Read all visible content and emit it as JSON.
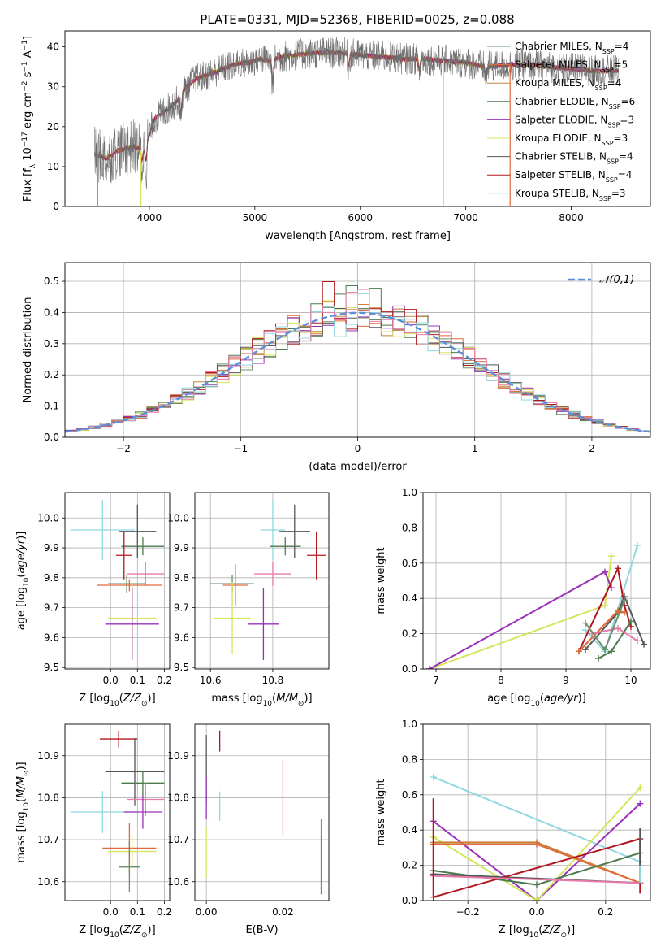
{
  "title": "PLATE=0331, MJD=52368, FIBERID=0025, z=0.088",
  "colors": {
    "c0": "#6a8f6a",
    "c1": "#e06a3a",
    "c2": "#c8843c",
    "c3": "#4d7a4d",
    "c4": "#9b30b8",
    "c5": "#d4e65a",
    "c6": "#555555",
    "c7": "#b01820",
    "c8": "#8fd8e0",
    "pink": "#e67aa8",
    "blue": "#5b8fd9"
  },
  "legend_spectrum": [
    {
      "label": "Chabrier MILES, N_SSP=4",
      "color": "c0"
    },
    {
      "label": "Salpeter MILES, N_SSP=5",
      "color": "c1"
    },
    {
      "label": "Kroupa MILES, N_SSP=4",
      "color": "c2"
    },
    {
      "label": "Chabrier ELODIE, N_SSP=6",
      "color": "c3"
    },
    {
      "label": "Salpeter ELODIE, N_SSP=3",
      "color": "c4"
    },
    {
      "label": "Kroupa ELODIE, N_SSP=3",
      "color": "c5"
    },
    {
      "label": "Chabrier STELIB, N_SSP=4",
      "color": "c6"
    },
    {
      "label": "Salpeter STELIB, N_SSP=4",
      "color": "c7"
    },
    {
      "label": "Kroupa STELIB, N_SSP=3",
      "color": "c8"
    }
  ],
  "chart_data": [
    {
      "id": "spectrum",
      "type": "line",
      "xlabel": "wavelength [Angstrom, rest frame]",
      "ylabel": "Flux [f_λ 10^-17 erg cm^-2 s^-1 A^-1]",
      "xlim": [
        3200,
        8750
      ],
      "ylim": [
        0,
        44
      ],
      "xticks": [
        4000,
        5000,
        6000,
        7000,
        8000
      ],
      "yticks": [
        0,
        10,
        20,
        30,
        40
      ],
      "grid": false,
      "legend_position": "right",
      "profile": [
        [
          3480,
          13
        ],
        [
          3600,
          12
        ],
        [
          3700,
          14
        ],
        [
          3850,
          15
        ],
        [
          3950,
          14
        ],
        [
          4050,
          22
        ],
        [
          4150,
          24
        ],
        [
          4250,
          26
        ],
        [
          4350,
          30
        ],
        [
          4450,
          32
        ],
        [
          4550,
          33
        ],
        [
          4650,
          34
        ],
        [
          4750,
          35
        ],
        [
          4850,
          36
        ],
        [
          4950,
          36
        ],
        [
          5050,
          37
        ],
        [
          5150,
          36.5
        ],
        [
          5250,
          37.5
        ],
        [
          5400,
          38
        ],
        [
          5600,
          38.5
        ],
        [
          5800,
          38.5
        ],
        [
          6000,
          38
        ],
        [
          6200,
          37.5
        ],
        [
          6400,
          37
        ],
        [
          6600,
          37
        ],
        [
          6800,
          36.5
        ],
        [
          7000,
          36
        ],
        [
          7200,
          35
        ],
        [
          7400,
          35.5
        ],
        [
          7600,
          35.5
        ],
        [
          7800,
          35
        ],
        [
          8000,
          34.5
        ],
        [
          8200,
          34
        ],
        [
          8450,
          34
        ]
      ],
      "dips": [
        [
          3930,
          3
        ],
        [
          3970,
          4
        ],
        [
          4300,
          5
        ],
        [
          5170,
          6
        ],
        [
          5890,
          3
        ],
        [
          6560,
          3
        ],
        [
          7190,
          3
        ]
      ],
      "spikes": [
        {
          "x": 3510,
          "y": 0,
          "color": "c1"
        },
        {
          "x": 3920,
          "y": 0,
          "color": "c5"
        },
        {
          "x": 6790,
          "y": 0,
          "color": "c5"
        },
        {
          "x": 7420,
          "y": 0,
          "color": "c1"
        }
      ]
    },
    {
      "id": "residual_hist",
      "type": "step-histogram",
      "xlabel": "(data-model)/error",
      "ylabel": "Normed distribution",
      "xlim": [
        -2.5,
        2.5
      ],
      "ylim": [
        0,
        0.56
      ],
      "xticks": [
        -2,
        -1,
        0,
        1,
        2
      ],
      "yticks": [
        0.0,
        0.1,
        0.2,
        0.3,
        0.4,
        0.5
      ],
      "grid": true,
      "bin_width": 0.1,
      "legend": "𝒩(0,1)",
      "legend_position": "top-right",
      "reference_curve": "normal(0,1)"
    },
    {
      "id": "age_vs_Z",
      "type": "errorbar",
      "xlabel": "Z [log10(Z/Z☉)]",
      "ylabel": "age  [log10(age/yr)]",
      "xlim": [
        -0.17,
        0.22
      ],
      "ylim": [
        9.495,
        10.085
      ],
      "xticks": [
        0.0,
        0.1,
        0.2
      ],
      "yticks": [
        9.5,
        9.6,
        9.7,
        9.8,
        9.9,
        10.0
      ],
      "grid": true,
      "points": [
        {
          "x": -0.03,
          "xerr": 0.12,
          "y": 9.96,
          "yerr": 0.1,
          "color": "c8"
        },
        {
          "x": 0.1,
          "xerr": 0.07,
          "y": 9.955,
          "yerr": 0.09,
          "color": "c6"
        },
        {
          "x": 0.12,
          "xerr": 0.08,
          "y": 9.905,
          "yerr": 0.03,
          "color": "c3"
        },
        {
          "x": 0.05,
          "xerr": 0.03,
          "y": 9.875,
          "yerr": 0.08,
          "color": "c7"
        },
        {
          "x": 0.13,
          "xerr": 0.07,
          "y": 9.813,
          "yerr": 0.04,
          "color": "pink"
        },
        {
          "x": 0.06,
          "xerr": 0.07,
          "y": 9.78,
          "yerr": 0.03,
          "color": "c0"
        },
        {
          "x": 0.07,
          "xerr": 0.12,
          "y": 9.775,
          "yerr": 0.02,
          "color": "c1"
        },
        {
          "x": 0.08,
          "xerr": 0.09,
          "y": 9.665,
          "yerr": 0.12,
          "color": "c5"
        },
        {
          "x": 0.08,
          "xerr": 0.1,
          "y": 9.645,
          "yerr": 0.12,
          "color": "c4"
        }
      ]
    },
    {
      "id": "age_vs_mass",
      "type": "errorbar",
      "xlabel": "mass [log10(M/M☉)]",
      "ylabel": "",
      "xlim": [
        10.55,
        10.98
      ],
      "ylim": [
        9.495,
        10.085
      ],
      "xticks": [
        10.6,
        10.8
      ],
      "yticks": [
        9.5,
        9.6,
        9.7,
        9.8,
        9.9,
        10.0
      ],
      "grid": true,
      "points": [
        {
          "x": 10.8,
          "xerr": 0.04,
          "y": 9.96,
          "yerr": 0.1,
          "color": "c8"
        },
        {
          "x": 10.87,
          "xerr": 0.05,
          "y": 9.955,
          "yerr": 0.09,
          "color": "c6"
        },
        {
          "x": 10.84,
          "xerr": 0.05,
          "y": 9.905,
          "yerr": 0.03,
          "color": "c3"
        },
        {
          "x": 10.94,
          "xerr": 0.03,
          "y": 9.875,
          "yerr": 0.08,
          "color": "c7"
        },
        {
          "x": 10.8,
          "xerr": 0.06,
          "y": 9.813,
          "yerr": 0.04,
          "color": "pink"
        },
        {
          "x": 10.67,
          "xerr": 0.07,
          "y": 9.78,
          "yerr": 0.03,
          "color": "c0"
        },
        {
          "x": 10.68,
          "xerr": 0.04,
          "y": 9.775,
          "yerr": 0.07,
          "color": "c1"
        },
        {
          "x": 10.67,
          "xerr": 0.06,
          "y": 9.665,
          "yerr": 0.12,
          "color": "c5"
        },
        {
          "x": 10.77,
          "xerr": 0.05,
          "y": 9.645,
          "yerr": 0.12,
          "color": "c4"
        }
      ]
    },
    {
      "id": "mass_weight_vs_age",
      "type": "line",
      "xlabel": "age  [log10(age/yr)]",
      "ylabel": "mass weight",
      "xlim": [
        6.8,
        10.3
      ],
      "ylim": [
        0,
        1
      ],
      "xticks": [
        7,
        8,
        9,
        10
      ],
      "yticks": [
        0.0,
        0.2,
        0.4,
        0.6,
        0.8,
        1.0
      ],
      "grid": true,
      "series": [
        {
          "color": "c5",
          "x": [
            6.9,
            9.6,
            9.7
          ],
          "y": [
            0.0,
            0.36,
            0.64
          ]
        },
        {
          "color": "c4",
          "x": [
            6.9,
            9.6,
            9.7
          ],
          "y": [
            0.0,
            0.55,
            0.46
          ]
        },
        {
          "color": "c8",
          "x": [
            9.3,
            9.6,
            10.1
          ],
          "y": [
            0.22,
            0.1,
            0.7
          ]
        },
        {
          "color": "c7",
          "x": [
            9.2,
            9.8,
            9.9,
            10.0
          ],
          "y": [
            0.1,
            0.57,
            0.36,
            0.24
          ]
        },
        {
          "color": "c6",
          "x": [
            9.3,
            9.8,
            9.9,
            10.2
          ],
          "y": [
            0.11,
            0.32,
            0.41,
            0.14
          ]
        },
        {
          "color": "c3",
          "x": [
            9.5,
            9.7,
            10.0
          ],
          "y": [
            0.06,
            0.1,
            0.27
          ]
        },
        {
          "color": "c2",
          "x": [
            9.2,
            9.8,
            9.9
          ],
          "y": [
            0.1,
            0.33,
            0.32
          ]
        },
        {
          "color": "c1",
          "x": [
            9.2,
            9.8,
            9.9
          ],
          "y": [
            0.1,
            0.33,
            0.32
          ]
        },
        {
          "color": "pink",
          "x": [
            9.4,
            9.8,
            10.1
          ],
          "y": [
            0.2,
            0.23,
            0.16
          ]
        },
        {
          "color": "c0",
          "x": [
            9.3,
            9.6,
            9.9
          ],
          "y": [
            0.26,
            0.11,
            0.39
          ]
        }
      ]
    },
    {
      "id": "mass_vs_Z",
      "type": "errorbar",
      "xlabel": "Z [log10(Z/Z☉)]",
      "ylabel": "mass [log10(M/M☉)]",
      "xlim": [
        -0.17,
        0.22
      ],
      "ylim": [
        10.555,
        10.975
      ],
      "xticks": [
        0.0,
        0.1,
        0.2
      ],
      "yticks": [
        10.6,
        10.7,
        10.8,
        10.9
      ],
      "grid": true,
      "points": [
        {
          "x": 0.03,
          "xerr": 0.07,
          "y": 10.94,
          "yerr": 0.02,
          "color": "c7"
        },
        {
          "x": 0.09,
          "xerr": 0.11,
          "y": 10.862,
          "yerr": 0.08,
          "color": "c6"
        },
        {
          "x": 0.12,
          "xerr": 0.08,
          "y": 10.835,
          "yerr": 0.03,
          "color": "c3"
        },
        {
          "x": -0.03,
          "xerr": 0.12,
          "y": 10.766,
          "yerr": 0.05,
          "color": "c8"
        },
        {
          "x": 0.13,
          "xerr": 0.07,
          "y": 10.796,
          "yerr": 0.04,
          "color": "pink"
        },
        {
          "x": 0.12,
          "xerr": 0.07,
          "y": 10.766,
          "yerr": 0.04,
          "color": "c4"
        },
        {
          "x": 0.07,
          "xerr": 0.1,
          "y": 10.68,
          "yerr": 0.06,
          "color": "c1"
        },
        {
          "x": 0.08,
          "xerr": 0.09,
          "y": 10.672,
          "yerr": 0.04,
          "color": "c5"
        },
        {
          "x": 0.07,
          "xerr": 0.04,
          "y": 10.635,
          "yerr": 0.06,
          "color": "c0"
        }
      ]
    },
    {
      "id": "mass_vs_ebv",
      "type": "errorbar",
      "xlabel": "E(B-V)",
      "ylabel": "",
      "xlim": [
        -0.003,
        0.032
      ],
      "ylim": [
        10.555,
        10.975
      ],
      "xticks": [
        0.0,
        0.02
      ],
      "yticks": [
        10.6,
        10.7,
        10.8,
        10.9
      ],
      "grid": true,
      "points": [
        {
          "x": 0.0,
          "xerr": 0,
          "y": 10.87,
          "yerr": 0.08,
          "color": "c6"
        },
        {
          "x": 0.0,
          "xerr": 0,
          "y": 10.8,
          "yerr": 0.05,
          "color": "c4"
        },
        {
          "x": 0.0,
          "xerr": 0,
          "y": 10.67,
          "yerr": 0.06,
          "color": "c5"
        },
        {
          "x": 0.0035,
          "xerr": 0,
          "y": 10.935,
          "yerr": 0.025,
          "color": "c7"
        },
        {
          "x": 0.0035,
          "xerr": 0,
          "y": 10.78,
          "yerr": 0.035,
          "color": "c8"
        },
        {
          "x": 0.02,
          "xerr": 0,
          "y": 10.8,
          "yerr": 0.09,
          "color": "pink"
        },
        {
          "x": 0.03,
          "xerr": 0,
          "y": 10.66,
          "yerr": 0.09,
          "color": "c1"
        },
        {
          "x": 0.03,
          "xerr": 0,
          "y": 10.64,
          "yerr": 0.07,
          "color": "c0"
        }
      ]
    },
    {
      "id": "mass_weight_vs_Z",
      "type": "line",
      "xlabel": "Z [log10(Z/Z☉)]",
      "ylabel": "mass weight",
      "xlim": [
        -0.33,
        0.33
      ],
      "ylim": [
        0,
        1
      ],
      "xticks": [
        -0.2,
        0.0,
        0.2
      ],
      "yticks": [
        0.0,
        0.2,
        0.4,
        0.6,
        0.8,
        1.0
      ],
      "grid": true,
      "series": [
        {
          "color": "c8",
          "x": [
            -0.3,
            0.3
          ],
          "y": [
            0.7,
            0.22
          ]
        },
        {
          "color": "c4",
          "x": [
            -0.3,
            0.0,
            0.3
          ],
          "y": [
            0.45,
            0.0,
            0.55
          ]
        },
        {
          "color": "c5",
          "x": [
            -0.3,
            0.0,
            0.3
          ],
          "y": [
            0.36,
            0.0,
            0.64
          ]
        },
        {
          "color": "c2",
          "x": [
            -0.3,
            0.0,
            0.3
          ],
          "y": [
            0.33,
            0.33,
            0.1
          ]
        },
        {
          "color": "c1",
          "x": [
            -0.3,
            0.0,
            0.3
          ],
          "y": [
            0.32,
            0.32,
            0.1
          ]
        },
        {
          "color": "c3",
          "x": [
            -0.3,
            0.0,
            0.3
          ],
          "y": [
            0.17,
            0.09,
            0.27
          ]
        },
        {
          "color": "c6",
          "x": [
            -0.3,
            0.3
          ],
          "y": [
            0.15,
            0.1
          ]
        },
        {
          "color": "c7",
          "x": [
            -0.3,
            0.3
          ],
          "y": [
            0.02,
            0.35
          ]
        },
        {
          "color": "pink",
          "x": [
            -0.3,
            0.3
          ],
          "y": [
            0.14,
            0.1
          ]
        }
      ],
      "vertical_marks": [
        {
          "x": -0.3,
          "color": "c7",
          "y0": 0.02,
          "y1": 0.58
        },
        {
          "x": 0.3,
          "color": "c7",
          "y0": 0.04,
          "y1": 0.35
        },
        {
          "x": 0.3,
          "color": "c8",
          "y0": 0.1,
          "y1": 0.25
        },
        {
          "x": 0.3,
          "color": "c6",
          "y0": 0.2,
          "y1": 0.41
        }
      ]
    }
  ]
}
